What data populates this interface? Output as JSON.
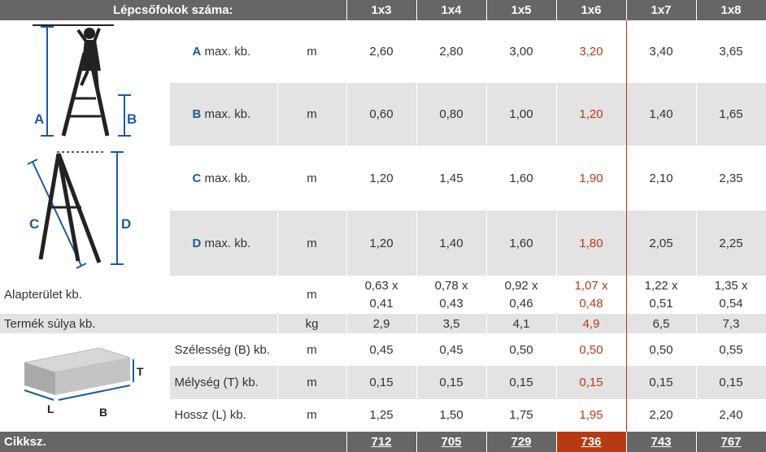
{
  "header": {
    "label": "Lépcsőfokok száma:",
    "sizes": [
      "1x3",
      "1x4",
      "1x5",
      "1x6",
      "1x7",
      "1x8"
    ]
  },
  "rows": {
    "a": {
      "letter": "A",
      "label": "max. kb.",
      "unit": "m",
      "values": [
        "2,60",
        "2,80",
        "3,00",
        "3,20",
        "3,40",
        "3,65"
      ]
    },
    "b": {
      "letter": "B",
      "label": "max. kb.",
      "unit": "m",
      "values": [
        "0,60",
        "0,80",
        "1,00",
        "1,20",
        "1,40",
        "1,65"
      ]
    },
    "c": {
      "letter": "C",
      "label": "max. kb.",
      "unit": "m",
      "values": [
        "1,20",
        "1,45",
        "1,60",
        "1,90",
        "2,10",
        "2,35"
      ]
    },
    "d": {
      "letter": "D",
      "label": "max. kb.",
      "unit": "m",
      "values": [
        "1,20",
        "1,40",
        "1,60",
        "1,80",
        "2,05",
        "2,25"
      ]
    },
    "footprint": {
      "label": "Alapterület kb.",
      "unit": "m",
      "values": [
        [
          "0,63 x",
          "0,41"
        ],
        [
          "0,78 x",
          "0,43"
        ],
        [
          "0,92 x",
          "0,46"
        ],
        [
          "1,07 x",
          "0,48"
        ],
        [
          "1,22 x",
          "0,51"
        ],
        [
          "1,35 x",
          "0,54"
        ]
      ]
    },
    "weight": {
      "label": "Termék súlya kb.",
      "unit": "kg",
      "values": [
        "2,9",
        "3,5",
        "4,1",
        "4,9",
        "6,5",
        "7,3"
      ]
    },
    "width": {
      "label": "Szélesség (B) kb.",
      "unit": "m",
      "values": [
        "0,45",
        "0,45",
        "0,50",
        "0,50",
        "0,50",
        "0,55"
      ]
    },
    "depth": {
      "label": "Mélység (T) kb.",
      "unit": "m",
      "values": [
        "0,15",
        "0,15",
        "0,15",
        "0,15",
        "0,15",
        "0,15"
      ]
    },
    "length": {
      "label": "Hossz (L) kb.",
      "unit": "m",
      "values": [
        "1,25",
        "1,50",
        "1,75",
        "1,95",
        "2,20",
        "2,40"
      ]
    }
  },
  "diagram_labels": {
    "a": "A",
    "b": "B",
    "c": "C",
    "d": "D",
    "box_t": "T",
    "box_l": "L",
    "box_b": "B"
  },
  "footer": {
    "label": "Cikksz.",
    "codes": [
      "712",
      "705",
      "729",
      "736",
      "743",
      "767"
    ]
  },
  "colors": {
    "header_bg": "#666666",
    "highlight": "#b83a12",
    "letter_blue": "#1a5aa0",
    "stripe": "#e3e3e3"
  }
}
